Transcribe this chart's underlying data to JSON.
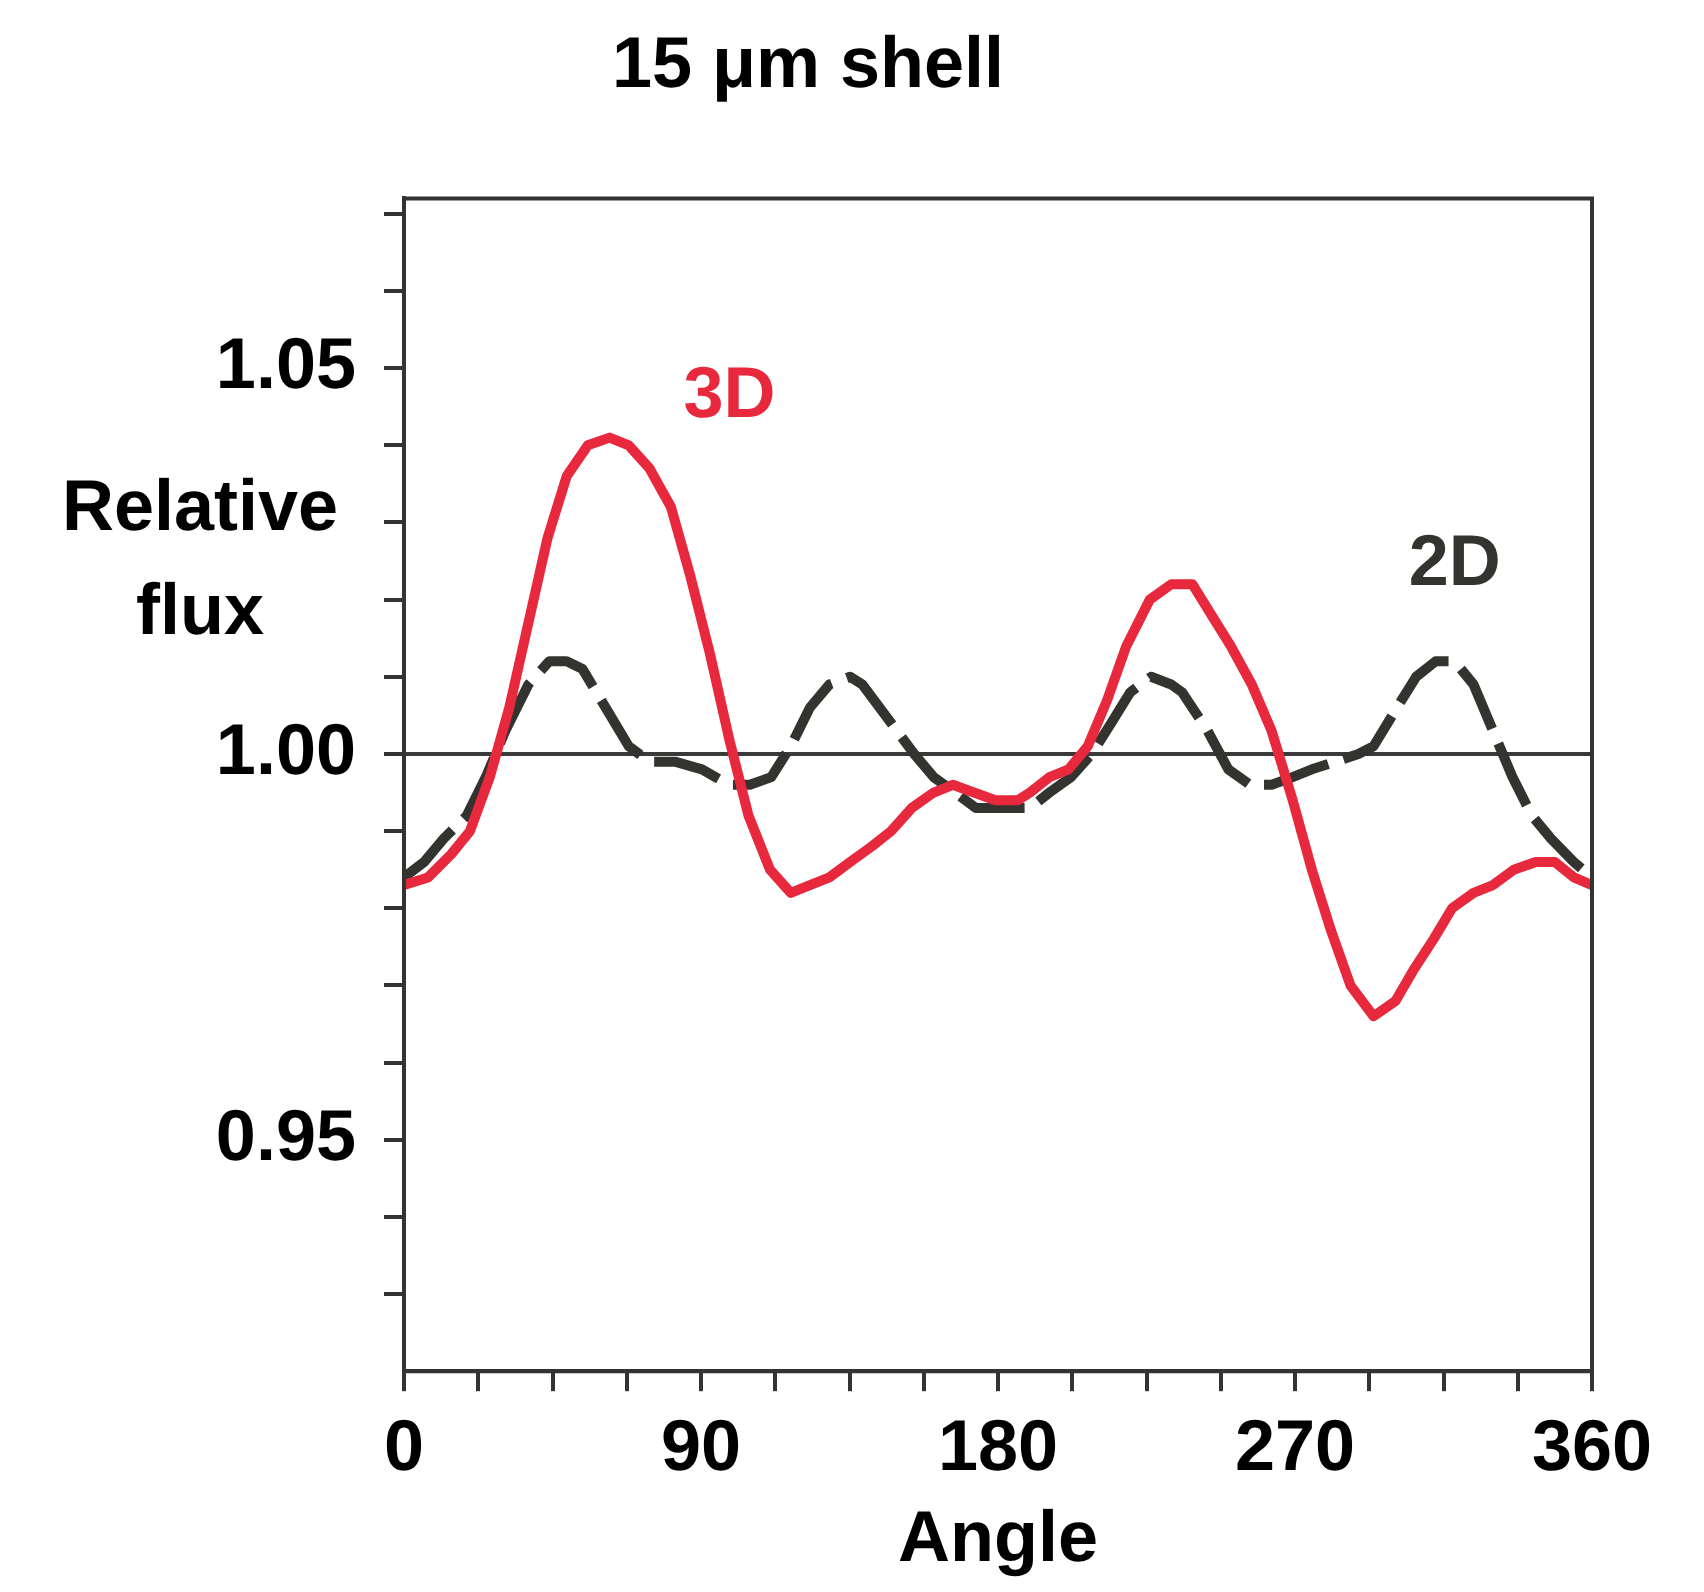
{
  "chart_data": {
    "type": "line",
    "title": "15 μm shell",
    "xlabel": "Angle",
    "ylabel": "Relative flux",
    "xlim": [
      0,
      360
    ],
    "xticks": [
      0,
      {
        "value": 22.5,
        "label": null
      },
      {
        "value": 45,
        "label": null
      },
      {
        "value": 67.5,
        "label": null
      },
      90,
      {
        "value": 112.5,
        "label": null
      },
      {
        "value": 135,
        "label": null
      },
      {
        "value": 157.5,
        "label": null
      },
      180,
      {
        "value": 202.5,
        "label": null
      },
      {
        "value": 225,
        "label": null
      },
      {
        "value": 247.5,
        "label": null
      },
      270,
      {
        "value": 292.5,
        "label": null
      },
      {
        "value": 315,
        "label": null
      },
      {
        "value": 337.5,
        "label": null
      },
      360
    ],
    "ylim": [
      0.92,
      1.072
    ],
    "yticks": [
      {
        "value": 0.93,
        "label": null
      },
      {
        "value": 0.94,
        "label": null
      },
      0.95,
      {
        "value": 0.96,
        "label": null
      },
      {
        "value": 0.97,
        "label": null
      },
      {
        "value": 0.98,
        "label": null
      },
      {
        "value": 0.99,
        "label": null
      },
      {
        "value": 1.0,
        "label": "1.00"
      },
      {
        "value": 1.01,
        "label": null
      },
      {
        "value": 1.02,
        "label": null
      },
      {
        "value": 1.03,
        "label": null
      },
      {
        "value": 1.04,
        "label": null
      },
      1.05,
      {
        "value": 1.06,
        "label": null
      },
      {
        "value": 1.07,
        "label": null
      }
    ],
    "grid": false,
    "legend": false,
    "marker": "none",
    "ref_lines": [
      {
        "axis": "y",
        "value": 1.0,
        "color": "#3a3a3a"
      }
    ],
    "series": [
      {
        "name": "3D",
        "color": "#e8283c",
        "line_style": "solid",
        "x": [
          0,
          7.3,
          14.3,
          20,
          26,
          31.9,
          37.7,
          43.5,
          49.3,
          55.7,
          62.3,
          68.1,
          74.4,
          80.9,
          86.8,
          92.7,
          98.5,
          104.4,
          110.9,
          117.2,
          123,
          128.9,
          135.2,
          141.7,
          147.6,
          153.9,
          160.5,
          166.3,
          172.7,
          179.2,
          186,
          189.7,
          195.6,
          201.4,
          207.2,
          213.1,
          218.9,
          226,
          232.5,
          238.9,
          244.7,
          250.5,
          256.9,
          262.9,
          269.3,
          275.1,
          281,
          286.8,
          293.8,
          300.5,
          305.9,
          312,
          317.6,
          324.1,
          330,
          336.3,
          343,
          348.7,
          354.5,
          360
        ],
        "values": [
          0.983,
          0.984,
          0.987,
          0.99,
          0.997,
          1.006,
          1.017,
          1.028,
          1.036,
          1.04,
          1.041,
          1.04,
          1.037,
          1.032,
          1.023,
          1.013,
          1.002,
          0.992,
          0.985,
          0.982,
          0.983,
          0.984,
          0.986,
          0.988,
          0.99,
          0.993,
          0.995,
          0.996,
          0.995,
          0.994,
          0.994,
          0.995,
          0.997,
          0.998,
          1.001,
          1.007,
          1.014,
          1.02,
          1.022,
          1.022,
          1.018,
          1.014,
          1.009,
          1.003,
          0.994,
          0.985,
          0.977,
          0.97,
          0.966,
          0.968,
          0.972,
          0.976,
          0.98,
          0.982,
          0.983,
          0.985,
          0.986,
          0.986,
          0.984,
          0.983
        ]
      },
      {
        "name": "2D",
        "color": "#33332f",
        "line_style": "dashed",
        "x": [
          0,
          6.1,
          12,
          19,
          24.8,
          30.7,
          37.7,
          44,
          49.3,
          54.1,
          61.1,
          68.1,
          74.4,
          82.1,
          90.3,
          98.5,
          104.8,
          111.3,
          117.2,
          123,
          128.9,
          135.2,
          138.9,
          147.6,
          154.6,
          160.5,
          167,
          173.3,
          186,
          189.7,
          195.6,
          202.1,
          208.4,
          214.3,
          220.1,
          226.4,
          232.5,
          235.8,
          243.5,
          249.8,
          256.4,
          262.9,
          269.3,
          275.1,
          282.2,
          289.2,
          293.8,
          300.9,
          306.7,
          312.6,
          318.4,
          324.1,
          330,
          335.9,
          341.8,
          347.6,
          354.5,
          360
        ],
        "values": [
          0.984,
          0.986,
          0.989,
          0.992,
          0.997,
          1.003,
          1.009,
          1.012,
          1.012,
          1.011,
          1.006,
          1.001,
          0.999,
          0.999,
          0.998,
          0.996,
          0.996,
          0.997,
          1.001,
          1.006,
          1.009,
          1.01,
          1.009,
          1.004,
          1.0,
          0.997,
          0.995,
          0.993,
          0.993,
          0.993,
          0.995,
          0.997,
          1.0,
          1.004,
          1.008,
          1.01,
          1.009,
          1.008,
          1.003,
          0.998,
          0.996,
          0.996,
          0.997,
          0.998,
          0.999,
          1.0,
          1.001,
          1.006,
          1.01,
          1.012,
          1.012,
          1.009,
          1.003,
          0.997,
          0.992,
          0.989,
          0.986,
          0.984
        ]
      }
    ]
  }
}
